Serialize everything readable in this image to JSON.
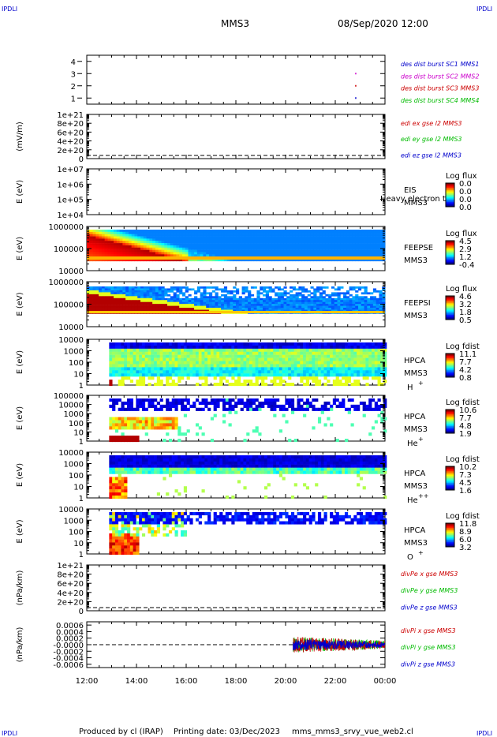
{
  "header": {
    "corner_tl": "IPDLI",
    "corner_tr": "IPDLI",
    "corner_bl": "IPDLI",
    "corner_br": "IPDLI",
    "spacecraft": "MMS3",
    "datetime": "08/Sep/2020 12:00"
  },
  "footer": {
    "produced": "Produced by cl (IRAP)",
    "printing": "Printing date: 03/Dec/2023",
    "script": "mms_mms3_srvy_vue_web2.cl"
  },
  "colors": {
    "blue": "#0000cc",
    "magenta": "#cc00cc",
    "red": "#cc0000",
    "green": "#00bb00"
  },
  "chart_data": [
    {
      "type": "scatter",
      "panel": "burst",
      "ylabel": "",
      "ylim": [
        0.5,
        4.5
      ],
      "yticks": [
        "1",
        "2",
        "3",
        "4"
      ],
      "legend": [
        {
          "text": "des dist burst SC1 MMS1",
          "color": "#0000cc"
        },
        {
          "text": "des dist burst SC2 MMS2",
          "color": "#cc00cc"
        },
        {
          "text": "des dist burst SC3 MMS3",
          "color": "#cc0000"
        },
        {
          "text": "des dist burst SC4 MMS4",
          "color": "#00bb00"
        }
      ],
      "points": [
        {
          "t": 22.8,
          "y": 3.0,
          "color": "#cc00cc"
        },
        {
          "t": 22.8,
          "y": 2.0,
          "color": "#cc0000"
        },
        {
          "t": 22.8,
          "y": 1.0,
          "color": "#0000cc"
        }
      ]
    },
    {
      "type": "line",
      "panel": "edi",
      "ylabel": "(mV/m)",
      "yticks": [
        "1e+21",
        "8e+20",
        "6e+20",
        "4e+20",
        "2e+20",
        "0"
      ],
      "legend": [
        {
          "text": "edi ex gse l2 MMS3",
          "color": "#cc0000"
        },
        {
          "text": "edi ey gse l2 MMS3",
          "color": "#00bb00"
        },
        {
          "text": "edi ez gse l2 MMS3",
          "color": "#0000cc"
        }
      ]
    },
    {
      "type": "heatmap",
      "panel": "eis",
      "ylabel": "E (eV)",
      "yscale": "log",
      "yticks": [
        "1e+07",
        "1e+06",
        "1e+05",
        "1e+04"
      ],
      "inst": "EIS",
      "sub": "MMS3",
      "note": "Heavy electron to",
      "cbar_title": "Log flux",
      "cbar_ticks": [
        "0.0",
        "0.0",
        "0.0",
        "0.0"
      ]
    },
    {
      "type": "heatmap",
      "panel": "feepse",
      "ylabel": "E (eV)",
      "yscale": "log",
      "yticks": [
        "1000000",
        "100000",
        "10000"
      ],
      "inst": "FEEPSE",
      "sub": "MMS3",
      "cbar_title": "Log flux",
      "cbar_ticks": [
        "4.5",
        "2.9",
        "1.2",
        "-0.4"
      ]
    },
    {
      "type": "heatmap",
      "panel": "feepsi",
      "ylabel": "E (eV)",
      "yscale": "log",
      "yticks": [
        "1000000",
        "100000",
        "10000"
      ],
      "inst": "FEEPSI",
      "sub": "MMS3",
      "cbar_title": "Log flux",
      "cbar_ticks": [
        "4.6",
        "3.2",
        "1.8",
        "0.5"
      ]
    },
    {
      "type": "heatmap",
      "panel": "hpca-h",
      "ylabel": "E (eV)",
      "yscale": "log",
      "yticks": [
        "10000",
        "1000",
        "100",
        "10",
        "1"
      ],
      "inst": "HPCA",
      "sub": "MMS3",
      "species": "H",
      "charge": "+",
      "cbar_title": "Log fdist",
      "cbar_ticks": [
        "11.1",
        "7.7",
        "4.2",
        "0.8"
      ]
    },
    {
      "type": "heatmap",
      "panel": "hpca-he",
      "ylabel": "E (eV)",
      "yscale": "log",
      "yticks": [
        "100000",
        "10000",
        "1000",
        "100",
        "10",
        "1"
      ],
      "inst": "HPCA",
      "sub": "MMS3",
      "species": "He",
      "charge": "+",
      "cbar_title": "Log fdist",
      "cbar_ticks": [
        "10.6",
        "7.7",
        "4.8",
        "1.9"
      ]
    },
    {
      "type": "heatmap",
      "panel": "hpca-he2",
      "ylabel": "E (eV)",
      "yscale": "log",
      "yticks": [
        "10000",
        "1000",
        "100",
        "10",
        "1"
      ],
      "inst": "HPCA",
      "sub": "MMS3",
      "species": "He",
      "charge": "++",
      "cbar_title": "Log fdist",
      "cbar_ticks": [
        "10.2",
        "7.3",
        "4.5",
        "1.6"
      ]
    },
    {
      "type": "heatmap",
      "panel": "hpca-o",
      "ylabel": "E (eV)",
      "yscale": "log",
      "yticks": [
        "10000",
        "1000",
        "100",
        "10",
        "1"
      ],
      "inst": "HPCA",
      "sub": "MMS3",
      "species": "O",
      "charge": "+",
      "cbar_title": "Log fdist",
      "cbar_ticks": [
        "11.8",
        "8.9",
        "6.0",
        "3.2"
      ]
    },
    {
      "type": "line",
      "panel": "divpe",
      "ylabel": "(nPa/km)",
      "yticks": [
        "1e+21",
        "8e+20",
        "6e+20",
        "4e+20",
        "2e+20",
        "0"
      ],
      "legend": [
        {
          "text": "divPe x gse MMS3",
          "color": "#cc0000"
        },
        {
          "text": "divPe y gse MMS3",
          "color": "#00bb00"
        },
        {
          "text": "divPe z gse MMS3",
          "color": "#0000cc"
        }
      ]
    },
    {
      "type": "line",
      "panel": "divpi",
      "ylabel": "(nPa/km)",
      "ylim": [
        -0.0007,
        0.0007
      ],
      "yticks": [
        "0.0006",
        "0.0004",
        "0.0002",
        "-0.0000",
        "-0.0002",
        "-0.0004",
        "-0.0006"
      ],
      "legend": [
        {
          "text": "divPi x gse MMS3",
          "color": "#cc0000"
        },
        {
          "text": "divPi y gse MMS3",
          "color": "#00bb00"
        },
        {
          "text": "divPi z gse MMS3",
          "color": "#0000cc"
        }
      ],
      "data_start": 20.3,
      "data_end": 24.0,
      "amplitude": 0.00025
    }
  ],
  "xaxis": {
    "ticks": [
      "12:00",
      "14:00",
      "16:00",
      "18:00",
      "20:00",
      "22:00",
      "00:00"
    ]
  }
}
